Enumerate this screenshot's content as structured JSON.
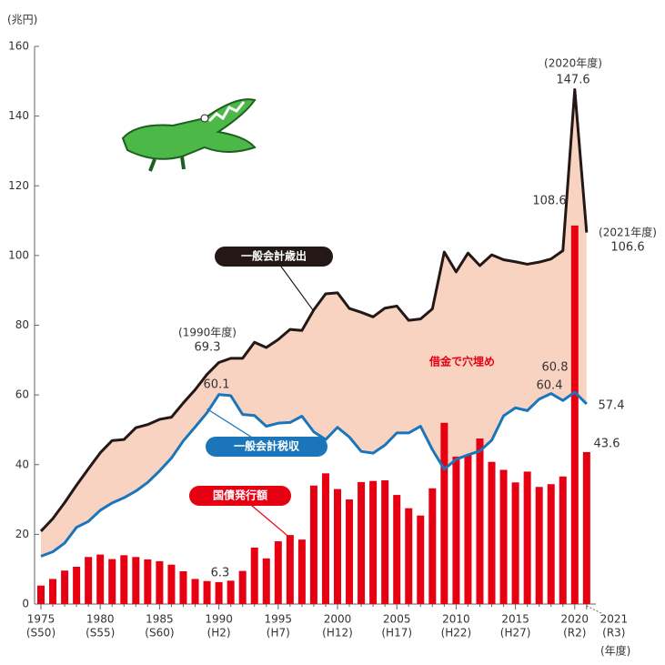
{
  "chart_data": {
    "type": "combo",
    "y_label": "(兆円)",
    "x_label": "(年度)",
    "categories": [
      "1975",
      null,
      null,
      null,
      null,
      "1980",
      null,
      null,
      null,
      null,
      "1985",
      null,
      null,
      null,
      null,
      "1990",
      null,
      null,
      null,
      null,
      "1995",
      null,
      null,
      null,
      null,
      "2000",
      null,
      null,
      null,
      null,
      "2005",
      null,
      null,
      null,
      null,
      "2010",
      null,
      null,
      null,
      null,
      "2015",
      null,
      null,
      null,
      null,
      "2020",
      "2021"
    ],
    "category_eras": [
      "(S50)",
      null,
      null,
      null,
      null,
      "(S55)",
      null,
      null,
      null,
      null,
      "(S60)",
      null,
      null,
      null,
      null,
      "(H2)",
      null,
      null,
      null,
      null,
      "(H7)",
      null,
      null,
      null,
      null,
      "(H12)",
      null,
      null,
      null,
      null,
      "(H17)",
      null,
      null,
      null,
      null,
      "(H22)",
      null,
      null,
      null,
      null,
      "(H27)",
      null,
      null,
      null,
      null,
      "(R2)",
      "(R3)"
    ],
    "ylim": [
      0,
      160
    ],
    "yticks": [
      0,
      20,
      40,
      60,
      80,
      100,
      120,
      140,
      160
    ],
    "fill_between_color": "#f9d3c2",
    "series": [
      {
        "name": "一般会計歳出",
        "kind": "line",
        "color": "#231815",
        "values": [
          20.9,
          24.5,
          29.1,
          34.1,
          38.8,
          43.4,
          46.9,
          47.2,
          50.6,
          51.5,
          53.0,
          53.6,
          57.7,
          61.5,
          65.9,
          69.3,
          70.5,
          70.5,
          75.1,
          73.6,
          75.9,
          78.8,
          78.5,
          84.4,
          89.0,
          89.3,
          84.8,
          83.7,
          82.4,
          84.9,
          85.5,
          81.4,
          81.8,
          84.7,
          101.0,
          95.3,
          100.7,
          97.1,
          100.2,
          98.8,
          98.2,
          97.5,
          98.1,
          99.0,
          101.4,
          147.6,
          106.6
        ]
      },
      {
        "name": "一般会計税収",
        "kind": "line",
        "color": "#1a75bb",
        "values": [
          13.7,
          15.0,
          17.5,
          22.0,
          23.7,
          26.9,
          29.0,
          30.5,
          32.4,
          34.9,
          38.2,
          41.9,
          46.8,
          50.8,
          54.9,
          60.1,
          59.8,
          54.4,
          54.1,
          51.0,
          51.9,
          52.1,
          53.9,
          49.4,
          47.2,
          50.7,
          47.9,
          43.8,
          43.3,
          45.6,
          49.1,
          49.1,
          51.0,
          44.3,
          38.7,
          41.5,
          42.8,
          43.9,
          47.0,
          54.0,
          56.3,
          55.5,
          58.8,
          60.4,
          58.4,
          60.8,
          57.4
        ]
      },
      {
        "name": "国債発行額",
        "kind": "bar",
        "color": "#e60012",
        "values": [
          5.3,
          7.2,
          9.6,
          10.7,
          13.5,
          14.2,
          12.9,
          14.0,
          13.5,
          12.8,
          12.3,
          11.3,
          9.4,
          7.2,
          6.6,
          6.3,
          6.7,
          9.5,
          16.2,
          13.1,
          18.0,
          19.8,
          18.5,
          34.0,
          37.5,
          33.0,
          30.0,
          35.0,
          35.3,
          35.5,
          31.3,
          27.5,
          25.4,
          33.2,
          52.0,
          42.3,
          42.8,
          47.5,
          40.8,
          38.5,
          34.9,
          38.0,
          33.6,
          34.4,
          36.6,
          108.6,
          43.6
        ]
      }
    ],
    "annotations": [
      "(1990年度)",
      "(2020年度)",
      "(2021年度)",
      "借金で穴埋め"
    ]
  }
}
